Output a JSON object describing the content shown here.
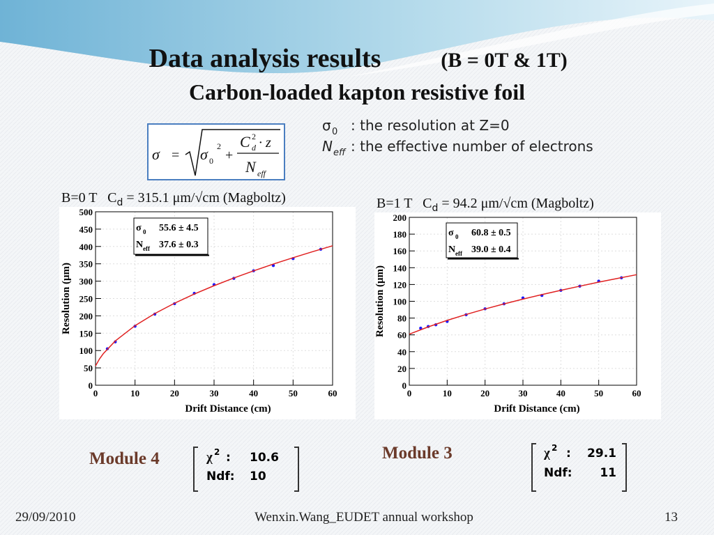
{
  "title": {
    "main": "Data analysis results",
    "sub": "(B = 0T & 1T)"
  },
  "subtitle": "Carbon-loaded kapton resistive foil",
  "formula": {
    "lhs": "σ",
    "eq": "=",
    "s": "σ",
    "s_sub": "0",
    "s_sup": "2",
    "plus": "+",
    "num": "C",
    "num_sup": "2",
    "num_sub": "d",
    "num_rest": "· z",
    "den": "N",
    "den_sub": "eff"
  },
  "notes": [
    {
      "symbol": "σ",
      "sub": "0",
      "text": ": the resolution at Z=0"
    },
    {
      "symbol": "N",
      "sub": "eff",
      "text": ": the effective number of electrons"
    }
  ],
  "chart_data": [
    {
      "type": "scatter",
      "header": {
        "prefix": "B=0 T   C",
        "sub": "d",
        "suffix": " = 315.1 μm/√cm (Magboltz)"
      },
      "x_label": "Drift Distance (cm)",
      "y_label": "Resolution (μm)",
      "xlim": [
        0,
        60
      ],
      "xticks": [
        0,
        10,
        20,
        30,
        40,
        50,
        60
      ],
      "ylim": [
        0,
        500
      ],
      "yticks": [
        0,
        50,
        100,
        150,
        200,
        250,
        300,
        350,
        400,
        450,
        500
      ],
      "grid": true,
      "stats": [
        {
          "symbol": "σ",
          "sub": "0",
          "value": "55.6 ± 4.5"
        },
        {
          "symbol": "N",
          "sub": "eff",
          "value": "37.6 ± 0.3"
        }
      ],
      "series": [
        {
          "mode": "markers",
          "color": "#1a1aff",
          "x": [
            3,
            5,
            10,
            15,
            20,
            25,
            30,
            35,
            40,
            45,
            50,
            57
          ],
          "values": [
            105,
            125,
            170,
            205,
            235,
            265,
            290,
            308,
            330,
            345,
            365,
            392
          ]
        },
        {
          "mode": "line",
          "color": "#e02020",
          "x": [
            0,
            1,
            2,
            5,
            10,
            15,
            20,
            25,
            30,
            35,
            40,
            45,
            50,
            55,
            60
          ],
          "values": [
            55.6,
            75.7,
            91.5,
            127.6,
            171.8,
            206.6,
            236.4,
            262.9,
            286.9,
            309.1,
            329.7,
            349.2,
            367.6,
            385.1,
            402.0
          ]
        }
      ]
    },
    {
      "type": "scatter",
      "header": {
        "prefix": "B=1 T   C",
        "sub": "d",
        "suffix": " = 94.2 μm/√cm (Magboltz)"
      },
      "x_label": "Drift Distance (cm)",
      "y_label": "Resolution (μm)",
      "xlim": [
        0,
        60
      ],
      "xticks": [
        0,
        10,
        20,
        30,
        40,
        50,
        60
      ],
      "ylim": [
        0,
        200
      ],
      "yticks": [
        0,
        20,
        40,
        60,
        80,
        100,
        120,
        140,
        160,
        180,
        200
      ],
      "grid": true,
      "stats": [
        {
          "symbol": "σ",
          "sub": "0",
          "value": "60.8 ± 0.5"
        },
        {
          "symbol": "N",
          "sub": "eff",
          "value": "39.0 ± 0.4"
        }
      ],
      "series": [
        {
          "mode": "markers",
          "color": "#1a1aff",
          "x": [
            3,
            5,
            7,
            10,
            15,
            20,
            25,
            30,
            35,
            40,
            45,
            50,
            56
          ],
          "values": [
            68,
            70,
            72,
            76,
            84,
            91,
            97,
            104,
            107,
            113,
            118,
            124,
            128
          ]
        },
        {
          "mode": "line",
          "color": "#e02020",
          "x": [
            0,
            5,
            10,
            15,
            20,
            25,
            30,
            35,
            40,
            45,
            50,
            55,
            60
          ],
          "values": [
            60.8,
            69.5,
            77.3,
            84.3,
            90.8,
            96.9,
            102.6,
            108.0,
            113.1,
            118.0,
            122.8,
            127.3,
            131.7
          ]
        }
      ]
    }
  ],
  "modules": [
    {
      "name": "Module 4",
      "chi_symbol": "χ",
      "chi_sup": "2",
      "chi_sep": ":",
      "chi_value": "10.6",
      "ndf_label": "Ndf:",
      "ndf_value": "10"
    },
    {
      "name": "Module 3",
      "chi_symbol": "χ",
      "chi_sup": "2",
      "chi_sep": ":",
      "chi_value": "29.1",
      "ndf_label": "Ndf:",
      "ndf_value": "11"
    }
  ],
  "footer": {
    "date": "29/09/2010",
    "center": "Wenxin.Wang_EUDET annual workshop",
    "page": "13"
  }
}
